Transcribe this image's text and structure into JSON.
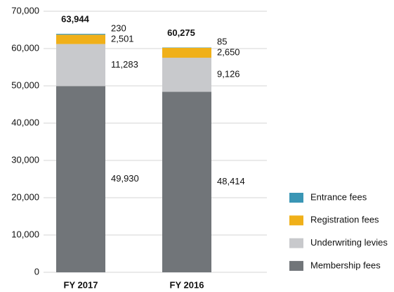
{
  "chart_data": {
    "type": "stacked_bar",
    "categories": [
      "FY 2017",
      "FY 2016"
    ],
    "series": [
      {
        "name": "Membership fees",
        "color": "#717579",
        "values": [
          49930,
          48414
        ],
        "value_labels": [
          "49,930",
          "48,414"
        ]
      },
      {
        "name": "Underwriting levies",
        "color": "#c8c9cc",
        "values": [
          11283,
          9126
        ],
        "value_labels": [
          "11,283",
          "9,126"
        ]
      },
      {
        "name": "Registration fees",
        "color": "#f0b019",
        "values": [
          2501,
          2650
        ],
        "value_labels": [
          "2,501",
          "2,650"
        ]
      },
      {
        "name": "Entrance fees",
        "color": "#3a96b5",
        "values": [
          230,
          85
        ],
        "value_labels": [
          "230",
          "85"
        ]
      }
    ],
    "totals": [
      63944,
      60275
    ],
    "total_labels": [
      "63,944",
      "60,275"
    ],
    "ylim": [
      0,
      70000
    ],
    "yticks": [
      0,
      {
        "value": 10000,
        "label": "10,000"
      },
      {
        "value": 20000,
        "label": "20,000"
      },
      {
        "value": 30000,
        "label": "30,000"
      },
      {
        "value": 40000,
        "label": "40,000"
      },
      {
        "value": 50000,
        "label": "50,000"
      },
      {
        "value": 60000,
        "label": "60,000"
      },
      {
        "value": 70000,
        "label": "70,000"
      }
    ],
    "grid": true,
    "legend": "right"
  }
}
